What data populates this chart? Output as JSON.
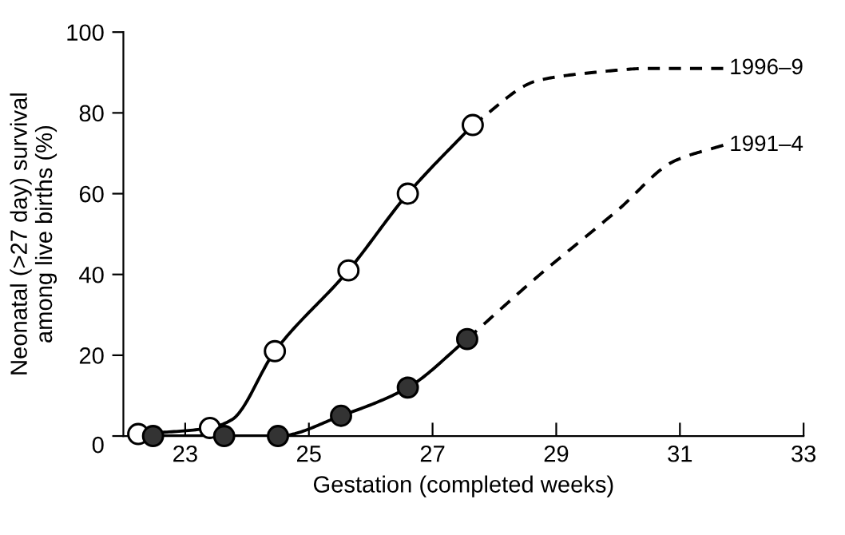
{
  "chart_data": {
    "type": "line",
    "xlabel": "Gestation (completed weeks)",
    "ylabel": "Neonatal (>27 day) survival\namong live births (%)",
    "xlim": [
      22,
      33
    ],
    "xticks": [
      23,
      25,
      27,
      29,
      31,
      33
    ],
    "ylim": [
      0,
      100
    ],
    "yticks": [
      0,
      20,
      40,
      60,
      80,
      100
    ],
    "grid": false,
    "legend": false,
    "series": [
      {
        "x": [
          22.24,
          23.4,
          23.75,
          24.45,
          25.64,
          26.6,
          27.65
        ],
        "values": [
          0.5,
          2,
          4,
          21,
          41,
          60,
          77
        ],
        "color": "#000000",
        "marker": "none",
        "line_style": "solid"
      },
      {
        "type": "scatter",
        "x": [
          22.24,
          23.4,
          24.45,
          25.64,
          26.6,
          27.65
        ],
        "values": [
          0.5,
          2,
          21,
          41,
          60,
          77
        ],
        "color": "#ffffff",
        "marker": "circle"
      },
      {
        "name": "1996–9",
        "x": [
          27.65,
          28.7,
          29.6,
          30.5,
          31.7
        ],
        "values": [
          77,
          88,
          90,
          91,
          91
        ],
        "color": "#000000",
        "marker": "none",
        "line_style": "dashed"
      },
      {
        "x": [
          22.48,
          23.63,
          24.5,
          25.52,
          26.6,
          27.56
        ],
        "values": [
          0,
          0,
          0,
          5,
          12,
          24
        ],
        "color": "#000000",
        "marker": "none",
        "line_style": "solid"
      },
      {
        "type": "scatter",
        "x": [
          22.48,
          23.63,
          24.5,
          25.52,
          26.6,
          27.56
        ],
        "values": [
          0,
          0,
          0,
          5,
          12,
          24
        ],
        "color": "#333333",
        "marker": "circle"
      },
      {
        "name": "1991–4",
        "x": [
          27.56,
          28.7,
          30.0,
          30.9,
          31.7
        ],
        "values": [
          24,
          39.5,
          56,
          68,
          72
        ],
        "color": "#000000",
        "marker": "none",
        "line_style": "dashed"
      }
    ]
  }
}
